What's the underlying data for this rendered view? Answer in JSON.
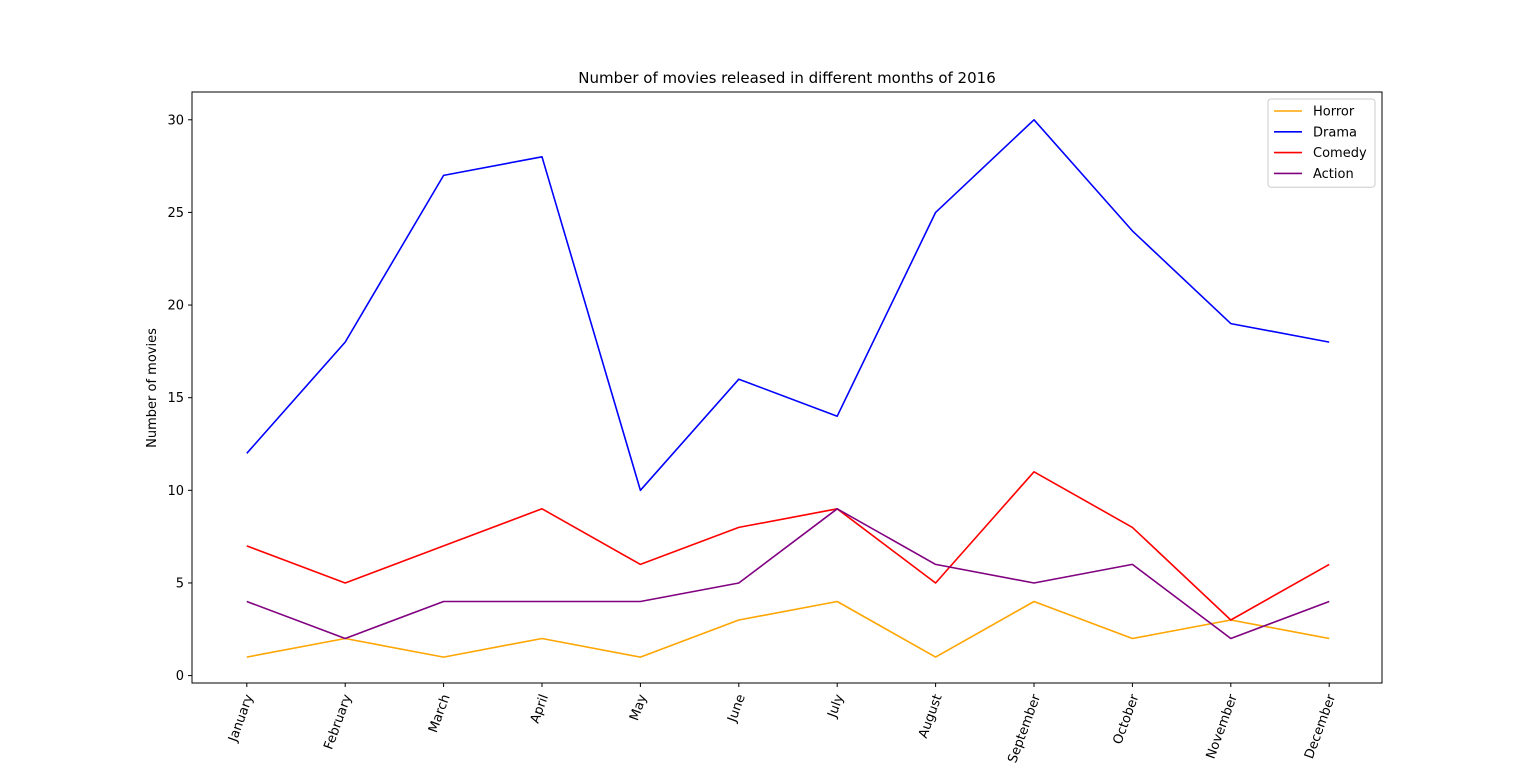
{
  "chart_data": {
    "type": "line",
    "title": "Number of movies released in different months of 2016",
    "xlabel": "",
    "ylabel": "Number of movies",
    "categories": [
      "January",
      "February",
      "March",
      "April",
      "May",
      "June",
      "July",
      "August",
      "September",
      "October",
      "November",
      "December"
    ],
    "yticks": [
      0,
      5,
      10,
      15,
      20,
      25,
      30
    ],
    "ylim": [
      -0.4,
      31.5
    ],
    "grid": false,
    "legend_position": "top-right",
    "series": [
      {
        "name": "Horror",
        "color": "#ffa500",
        "values": [
          1,
          2,
          1,
          2,
          1,
          3,
          4,
          1,
          4,
          2,
          3,
          2
        ]
      },
      {
        "name": "Drama",
        "color": "#0000ff",
        "values": [
          12,
          18,
          27,
          28,
          10,
          16,
          14,
          25,
          30,
          24,
          19,
          18
        ]
      },
      {
        "name": "Comedy",
        "color": "#ff0000",
        "values": [
          7,
          5,
          7,
          9,
          6,
          8,
          9,
          5,
          11,
          8,
          3,
          6
        ]
      },
      {
        "name": "Action",
        "color": "#800080",
        "values": [
          4,
          2,
          4,
          4,
          4,
          5,
          9,
          6,
          5,
          6,
          2,
          4
        ]
      }
    ]
  }
}
